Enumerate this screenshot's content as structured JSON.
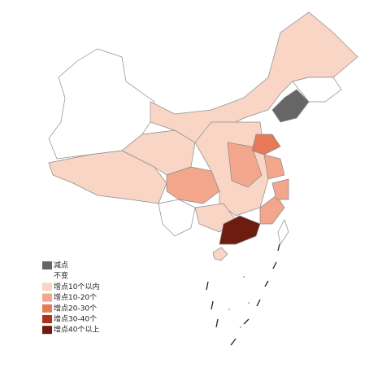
{
  "legend": [
    {
      "label": "减点",
      "color": "#666666"
    },
    {
      "label": "不变",
      "color": "#ffffff"
    },
    {
      "label": "增点10个以内",
      "color": "#f9d5c5"
    },
    {
      "label": "增点10-20个",
      "color": "#f2a68c"
    },
    {
      "label": "增点20-30个",
      "color": "#e67a58"
    },
    {
      "label": "增点30-40个",
      "color": "#a8341e"
    },
    {
      "label": "增点40个以上",
      "color": "#6e1c10"
    }
  ]
}
